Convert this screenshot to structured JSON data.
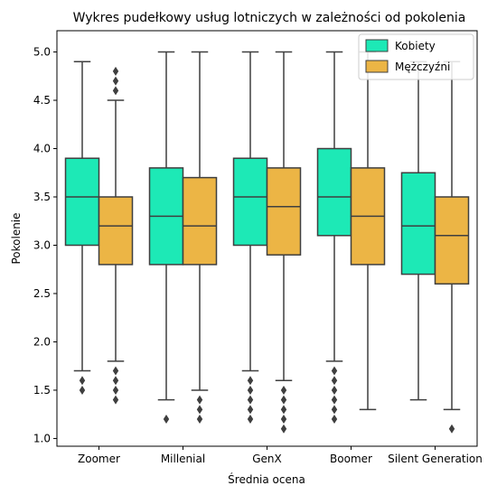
{
  "chart_data": {
    "type": "boxplot",
    "title": "Wykres pudełkowy usług lotniczych w zależności od pokolenia",
    "xlabel": "Średnia ocena",
    "ylabel": "Pokolenie",
    "ylim": [
      0.92,
      5.22
    ],
    "yticks": [
      "1.0",
      "1.5",
      "2.0",
      "2.5",
      "3.0",
      "3.5",
      "4.0",
      "4.5",
      "5.0"
    ],
    "categories": [
      "Zoomer",
      "Millenial",
      "GenX",
      "Boomer",
      "Silent Generation"
    ],
    "legend_position": "top-right",
    "grid": false,
    "series": [
      {
        "name": "Kobiety",
        "color": "#1de9b6",
        "boxes": [
          {
            "whislo": 1.7,
            "q1": 3.0,
            "med": 3.5,
            "q3": 3.9,
            "whishi": 4.9,
            "fliers": [
              1.5,
              1.6
            ]
          },
          {
            "whislo": 1.4,
            "q1": 2.8,
            "med": 3.3,
            "q3": 3.8,
            "whishi": 5.0,
            "fliers": [
              1.2
            ]
          },
          {
            "whislo": 1.7,
            "q1": 3.0,
            "med": 3.5,
            "q3": 3.9,
            "whishi": 5.0,
            "fliers": [
              1.2,
              1.3,
              1.4,
              1.5,
              1.6
            ]
          },
          {
            "whislo": 1.8,
            "q1": 3.1,
            "med": 3.5,
            "q3": 4.0,
            "whishi": 5.0,
            "fliers": [
              1.2,
              1.3,
              1.4,
              1.5,
              1.6,
              1.7
            ]
          },
          {
            "whislo": 1.4,
            "q1": 2.7,
            "med": 3.2,
            "q3": 3.75,
            "whishi": 4.9,
            "fliers": []
          }
        ]
      },
      {
        "name": "Mężczyźni",
        "color": "#ecb545",
        "boxes": [
          {
            "whislo": 1.8,
            "q1": 2.8,
            "med": 3.2,
            "q3": 3.5,
            "whishi": 4.5,
            "fliers": [
              1.4,
              1.5,
              1.6,
              1.7,
              4.6,
              4.7,
              4.8
            ]
          },
          {
            "whislo": 1.5,
            "q1": 2.8,
            "med": 3.2,
            "q3": 3.7,
            "whishi": 5.0,
            "fliers": [
              1.2,
              1.3,
              1.4
            ]
          },
          {
            "whislo": 1.6,
            "q1": 2.9,
            "med": 3.4,
            "q3": 3.8,
            "whishi": 5.0,
            "fliers": [
              1.1,
              1.2,
              1.3,
              1.4,
              1.5
            ]
          },
          {
            "whislo": 1.3,
            "q1": 2.8,
            "med": 3.3,
            "q3": 3.8,
            "whishi": 5.0,
            "fliers": []
          },
          {
            "whislo": 1.3,
            "q1": 2.6,
            "med": 3.1,
            "q3": 3.5,
            "whishi": 4.9,
            "fliers": [
              1.1
            ]
          }
        ]
      }
    ]
  }
}
